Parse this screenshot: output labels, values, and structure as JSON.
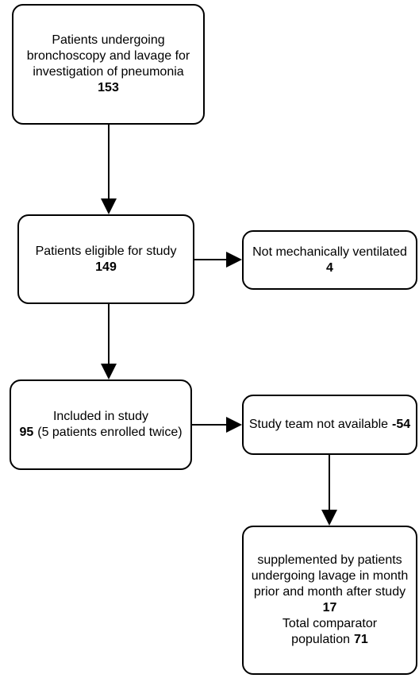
{
  "nodes": [
    {
      "label": "Patients undergoing bronchoscopy and lavage for investigation of pneumonia",
      "count": 153
    },
    {
      "label": "Patients eligible for study",
      "count": 149
    },
    {
      "label": "Not mechanically ventilated",
      "count": 4
    },
    {
      "label": "Included in study",
      "count": 95,
      "note": "(5 patients enrolled twice)"
    },
    {
      "label": "Study team not available",
      "count": -54
    },
    {
      "label": "supplemented by patients undergoing lavage in month prior and month after study",
      "count": 17,
      "total_label": "Total comparator population",
      "total": 71
    }
  ]
}
